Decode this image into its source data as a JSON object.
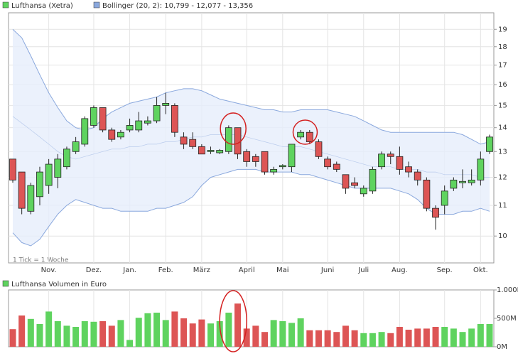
{
  "chart_data": [
    {
      "type": "candlestick",
      "categories": [
        null,
        null,
        null,
        null,
        "Nov.",
        null,
        null,
        null,
        null,
        "Dez.",
        null,
        null,
        null,
        "Jan.",
        null,
        null,
        null,
        "Feb.",
        null,
        null,
        null,
        "März",
        null,
        null,
        null,
        null,
        "April",
        null,
        null,
        null,
        "Mai",
        null,
        null,
        null,
        null,
        "Juni",
        null,
        null,
        null,
        "Juli",
        null,
        null,
        null,
        "Aug.",
        null,
        null,
        null,
        null,
        "Sep.",
        null,
        null,
        null,
        "Okt.",
        null
      ],
      "series": [
        {
          "name": "Lufthansa (Xetra)",
          "color": "#5fd35f",
          "color_down": "#dd5555",
          "open": [
            12.7,
            12.2,
            10.8,
            11.3,
            11.7,
            12.0,
            12.4,
            13.0,
            13.3,
            14.1,
            14.9,
            13.9,
            13.6,
            13.9,
            13.9,
            14.2,
            14.3,
            15.0,
            15.0,
            13.6,
            13.5,
            13.2,
            13.0,
            12.95,
            13.0,
            14.0,
            13.0,
            12.8,
            13.0,
            12.2,
            12.4,
            12.4,
            13.6,
            13.8,
            13.4,
            12.7,
            12.5,
            12.1,
            11.8,
            11.4,
            11.5,
            12.4,
            12.9,
            12.8,
            12.4,
            12.2,
            11.9,
            10.9,
            11.0,
            11.6,
            11.8,
            11.8,
            11.9,
            13.0
          ],
          "high": [
            12.7,
            12.2,
            11.8,
            12.4,
            12.7,
            12.9,
            13.2,
            13.6,
            14.5,
            15.0,
            14.9,
            14.0,
            13.9,
            14.4,
            14.7,
            14.5,
            15.4,
            15.6,
            15.1,
            13.8,
            13.8,
            13.3,
            13.2,
            13.1,
            14.1,
            14.0,
            13.1,
            12.9,
            13.0,
            12.4,
            12.5,
            13.3,
            13.9,
            13.9,
            13.5,
            12.8,
            12.6,
            12.1,
            12.0,
            11.7,
            12.4,
            13.0,
            13.0,
            13.2,
            12.6,
            12.3,
            12.0,
            11.0,
            11.7,
            12.0,
            12.3,
            12.3,
            13.0,
            13.7
          ],
          "low": [
            11.8,
            10.7,
            10.7,
            11.0,
            11.4,
            11.6,
            12.3,
            12.9,
            13.2,
            14.0,
            13.8,
            13.4,
            13.5,
            13.8,
            13.8,
            14.1,
            14.2,
            14.6,
            13.6,
            13.1,
            13.1,
            12.9,
            12.9,
            12.9,
            12.9,
            12.7,
            12.4,
            12.4,
            12.1,
            12.1,
            12.3,
            12.2,
            13.5,
            13.3,
            12.7,
            12.3,
            12.2,
            11.4,
            11.6,
            11.3,
            11.4,
            12.3,
            12.5,
            12.1,
            12.0,
            11.7,
            10.8,
            10.2,
            10.7,
            11.5,
            11.6,
            11.7,
            11.7,
            12.9
          ],
          "close": [
            11.9,
            10.9,
            11.7,
            12.2,
            12.5,
            12.7,
            13.1,
            13.4,
            14.4,
            14.9,
            13.9,
            13.5,
            13.8,
            14.1,
            14.3,
            14.3,
            15.0,
            15.1,
            13.8,
            13.3,
            13.2,
            12.9,
            13.05,
            13.05,
            14.0,
            12.9,
            12.6,
            12.6,
            12.2,
            12.3,
            12.45,
            13.3,
            13.8,
            13.4,
            12.8,
            12.4,
            12.3,
            11.6,
            11.7,
            11.6,
            12.3,
            12.9,
            12.8,
            12.3,
            12.2,
            11.9,
            10.9,
            10.6,
            11.5,
            11.9,
            11.85,
            11.9,
            12.7,
            13.6
          ]
        }
      ],
      "bands": {
        "name": "Bollinger (20, 2): 10,799 - 12,077 - 13,356",
        "color": "#8aa8dd",
        "upper": [
          19,
          18.5,
          17.5,
          16.5,
          15.6,
          14.9,
          14.3,
          14.0,
          13.9,
          14.0,
          14.4,
          14.7,
          14.9,
          15.1,
          15.2,
          15.3,
          15.4,
          15.6,
          15.7,
          15.8,
          15.8,
          15.7,
          15.5,
          15.3,
          15.2,
          15.1,
          15.0,
          14.9,
          14.8,
          14.8,
          14.7,
          14.7,
          14.8,
          14.8,
          14.8,
          14.8,
          14.7,
          14.6,
          14.5,
          14.3,
          14.1,
          13.9,
          13.8,
          13.8,
          13.8,
          13.8,
          13.8,
          13.8,
          13.8,
          13.8,
          13.7,
          13.5,
          13.3,
          13.4
        ],
        "middle": [
          14.5,
          14.2,
          13.9,
          13.6,
          13.3,
          13.0,
          12.8,
          12.7,
          12.8,
          12.9,
          13.0,
          13.1,
          13.1,
          13.2,
          13.2,
          13.3,
          13.3,
          13.4,
          13.4,
          13.5,
          13.6,
          13.6,
          13.7,
          13.7,
          13.7,
          13.7,
          13.6,
          13.5,
          13.4,
          13.3,
          13.2,
          13.2,
          13.2,
          13.1,
          13.0,
          12.9,
          12.8,
          12.7,
          12.6,
          12.5,
          12.4,
          12.4,
          12.4,
          12.3,
          12.3,
          12.3,
          12.2,
          12.2,
          12.1,
          12.1,
          12.1,
          12.1,
          12.0,
          12.0
        ],
        "lower": [
          10.1,
          9.8,
          9.7,
          9.9,
          10.3,
          10.7,
          11.0,
          11.2,
          11.1,
          11.0,
          10.9,
          10.9,
          10.8,
          10.8,
          10.8,
          10.8,
          10.9,
          10.9,
          11.0,
          11.1,
          11.3,
          11.7,
          12.0,
          12.1,
          12.2,
          12.3,
          12.3,
          12.3,
          12.2,
          12.2,
          12.2,
          12.2,
          12.1,
          12.1,
          12.0,
          11.9,
          11.8,
          11.7,
          11.6,
          11.6,
          11.6,
          11.6,
          11.6,
          11.5,
          11.4,
          11.2,
          10.9,
          10.7,
          10.7,
          10.7,
          10.8,
          10.8,
          10.9,
          10.8
        ]
      },
      "annotation": "1 Tick = 1 Woche",
      "log_scale": true,
      "grid": true,
      "ylim": [
        9.2,
        20
      ],
      "yticks": [
        10,
        11,
        12,
        13,
        14,
        15,
        16,
        17,
        18,
        19
      ]
    },
    {
      "type": "bar",
      "title": "Lufthansa Volumen in Euro",
      "color": "#5fd35f",
      "color_down": "#dd5555",
      "values": [
        310,
        550,
        490,
        400,
        620,
        450,
        370,
        350,
        450,
        440,
        450,
        370,
        470,
        120,
        510,
        590,
        600,
        470,
        620,
        500,
        410,
        480,
        410,
        450,
        600,
        760,
        320,
        370,
        260,
        470,
        450,
        420,
        500,
        290,
        290,
        290,
        260,
        370,
        290,
        240,
        240,
        260,
        240,
        350,
        300,
        320,
        320,
        350,
        350,
        320,
        260,
        320,
        400,
        400
      ],
      "ylim": [
        0,
        1000
      ],
      "yticks": [
        {
          "value": 0,
          "label": "0M"
        },
        {
          "value": 500,
          "label": "500M"
        },
        {
          "value": 1000,
          "label": "1.000M"
        }
      ]
    }
  ]
}
